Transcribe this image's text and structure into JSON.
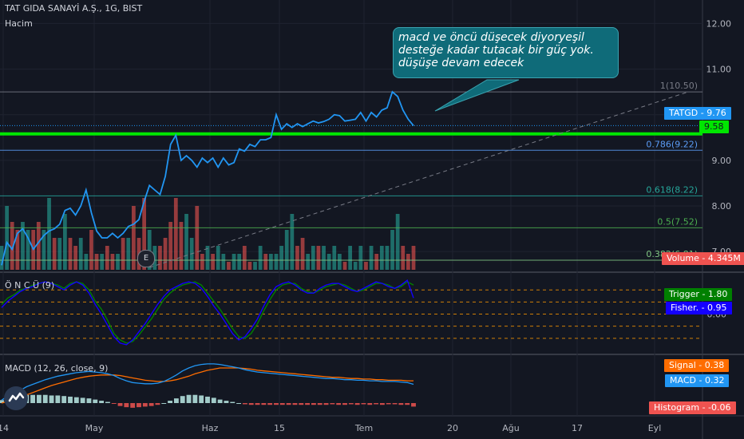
{
  "header": {
    "symbol_line": "TAT GIDA SANAYİ A.Ş., 1G, BIST",
    "volume_label": "Hacim",
    "oncu_label": "Ö N C Ü (9)",
    "macd_label": "MACD (12, 26, close, 9)"
  },
  "annotation": {
    "line1": "macd ve öncü düşecek diyoryeşil",
    "line2": "desteğe kadar tutacak bir güç yok.",
    "line3": " düşüşe devam edecek"
  },
  "event_badge": "E",
  "colors": {
    "background": "#131722",
    "price_line": "#2196f3",
    "support_green": "#00e600",
    "fib_blue": "#5b9cf6",
    "fib_teal": "#26a69a",
    "fib_green": "#4caf50",
    "volume_up": "#26a69a",
    "volume_down": "#ef5350",
    "trigger": "#008000",
    "fisher": "#1400ff",
    "signal": "#ff6d00",
    "macd": "#2196f3",
    "histogram": "#ef5350"
  },
  "chart_data": {
    "type": "line",
    "xticks": [
      "14",
      "May",
      "Haz",
      "15",
      "Tem",
      "20",
      "Ağu",
      "17",
      "Eyl"
    ],
    "price_axis": {
      "ticks": [
        "12.00",
        "11.00",
        "10.00",
        "9.00",
        "8.00",
        "7.00"
      ],
      "ylim": [
        6.6,
        12.2
      ]
    },
    "price_series": {
      "name": "TATGD",
      "values": [
        6.7,
        7.2,
        7.05,
        7.4,
        7.5,
        7.3,
        7.05,
        7.2,
        7.35,
        7.45,
        7.5,
        7.6,
        7.9,
        7.95,
        7.8,
        8.0,
        8.35,
        7.85,
        7.45,
        7.3,
        7.3,
        7.4,
        7.3,
        7.4,
        7.55,
        7.6,
        7.7,
        8.1,
        8.45,
        8.35,
        8.25,
        8.65,
        9.35,
        9.55,
        9.0,
        9.1,
        9.0,
        8.85,
        9.05,
        8.95,
        9.05,
        8.85,
        9.05,
        8.9,
        8.95,
        9.25,
        9.2,
        9.35,
        9.3,
        9.45,
        9.45,
        9.5,
        10.0,
        9.68,
        9.8,
        9.72,
        9.8,
        9.74,
        9.8,
        9.86,
        9.82,
        9.85,
        9.9,
        10.0,
        9.98,
        9.86,
        9.88,
        9.9,
        10.05,
        9.86,
        10.05,
        9.95,
        10.1,
        10.15,
        10.5,
        10.4,
        10.1,
        9.9,
        9.76
      ]
    },
    "volume": {
      "values": [
        3,
        8,
        6,
        5,
        6,
        5,
        5,
        6,
        5,
        9,
        4,
        4,
        7,
        4,
        3,
        4,
        2,
        5,
        2,
        2,
        3,
        2,
        2,
        4,
        4,
        8,
        4,
        9,
        5,
        3,
        3,
        4,
        6,
        9,
        6,
        7,
        4,
        8,
        2,
        3,
        2,
        3,
        2,
        1,
        2,
        2,
        3,
        1,
        1,
        3,
        2,
        2,
        2,
        3,
        5,
        7,
        3,
        4,
        2,
        3,
        3,
        3,
        2,
        3,
        2,
        1,
        3,
        1,
        3,
        1,
        3,
        2,
        3,
        3,
        5,
        7,
        3,
        2,
        3
      ],
      "up": [
        1,
        1,
        0,
        0,
        1,
        1,
        0,
        0,
        1,
        1,
        0,
        1,
        1,
        0,
        0,
        1,
        1,
        0,
        0,
        1,
        0,
        0,
        1,
        0,
        1,
        0,
        0,
        0,
        1,
        1,
        0,
        0,
        0,
        0,
        0,
        1,
        1,
        0,
        0,
        1,
        0,
        1,
        1,
        0,
        1,
        1,
        0,
        0,
        1,
        1,
        0,
        1,
        1,
        1,
        1,
        1,
        0,
        0,
        1,
        1,
        0,
        1,
        1,
        1,
        1,
        0,
        1,
        1,
        1,
        0,
        1,
        0,
        1,
        1,
        1,
        1,
        0,
        0,
        0
      ],
      "ylim": [
        0,
        12
      ]
    },
    "horizontal_levels": [
      {
        "label": "1(10.50)",
        "value": 10.5,
        "color": "#787b86"
      },
      {
        "label": "0.786(9.22)",
        "value": 9.22,
        "color": "#5b9cf6"
      },
      {
        "label": "0.618(8.22)",
        "value": 8.22,
        "color": "#26a69a"
      },
      {
        "label": "0.5(7.52)",
        "value": 7.52,
        "color": "#4caf50"
      },
      {
        "label": "0.382(6.81)",
        "value": 6.81,
        "color": "#81c784"
      }
    ],
    "support_level": 9.58,
    "trendline": {
      "from": [
        28,
        6.65
      ],
      "to": [
        130,
        10.5
      ]
    },
    "last_price_label": "TATGD",
    "last_price_value": "9.76",
    "support_value": "9.58",
    "volume_label": "Volume",
    "volume_value": "4.345M",
    "oncu": {
      "ticks": [
        "0.00"
      ],
      "ylim": [
        -2.3,
        2.4
      ],
      "trigger_label": "Trigger",
      "trigger_value": "1.80",
      "fisher_label": "Fisher.",
      "fisher_value": "0.95",
      "guide_levels": [
        1.5,
        0.75,
        0,
        -0.75,
        -1.5
      ],
      "trigger": [
        0.6,
        1.0,
        1.2,
        1.5,
        1.6,
        1.8,
        1.9,
        2.0,
        1.9,
        1.8,
        1.6,
        1.9,
        2.0,
        1.9,
        1.5,
        0.8,
        0.3,
        -0.4,
        -1.2,
        -1.6,
        -1.8,
        -1.7,
        -1.3,
        -0.8,
        -0.3,
        0.3,
        0.9,
        1.3,
        1.6,
        1.8,
        1.9,
        2.0,
        1.8,
        1.3,
        0.8,
        0.3,
        -0.3,
        -0.9,
        -1.4,
        -1.5,
        -1.2,
        -0.6,
        0.2,
        0.9,
        1.5,
        1.8,
        1.9,
        1.9,
        1.6,
        1.4,
        1.3,
        1.5,
        1.7,
        1.8,
        1.9,
        1.8,
        1.6,
        1.4,
        1.5,
        1.7,
        1.9,
        1.9,
        1.8,
        1.6,
        1.7,
        2.0,
        1.8
      ],
      "fisher": [
        0.4,
        0.8,
        1.1,
        1.4,
        1.6,
        1.7,
        1.9,
        2.0,
        1.9,
        1.7,
        1.5,
        1.8,
        2.0,
        1.8,
        1.3,
        0.6,
        0.0,
        -0.7,
        -1.4,
        -1.8,
        -1.9,
        -1.6,
        -1.1,
        -0.6,
        0.0,
        0.6,
        1.1,
        1.5,
        1.7,
        1.9,
        2.0,
        1.9,
        1.6,
        1.1,
        0.5,
        0.0,
        -0.6,
        -1.2,
        -1.6,
        -1.4,
        -0.9,
        -0.3,
        0.5,
        1.2,
        1.7,
        1.9,
        2.0,
        1.8,
        1.5,
        1.3,
        1.3,
        1.6,
        1.8,
        1.9,
        1.9,
        1.7,
        1.5,
        1.4,
        1.6,
        1.8,
        2.0,
        1.9,
        1.7,
        1.6,
        1.8,
        2.1,
        1.0
      ]
    },
    "macd": {
      "ylim": [
        -0.15,
        0.75
      ],
      "signal_label": "Signal",
      "signal_value": "0.38",
      "macd_label": "MACD",
      "macd_value": "0.32",
      "histogram_label": "Histogram",
      "histogram_value": "-0.06",
      "macd_line": [
        0.05,
        0.12,
        0.18,
        0.22,
        0.28,
        0.32,
        0.36,
        0.4,
        0.43,
        0.46,
        0.48,
        0.5,
        0.52,
        0.53,
        0.54,
        0.53,
        0.52,
        0.5,
        0.47,
        0.42,
        0.38,
        0.35,
        0.34,
        0.33,
        0.33,
        0.34,
        0.37,
        0.42,
        0.48,
        0.55,
        0.6,
        0.64,
        0.66,
        0.67,
        0.67,
        0.66,
        0.64,
        0.62,
        0.6,
        0.57,
        0.55,
        0.53,
        0.52,
        0.51,
        0.5,
        0.49,
        0.48,
        0.47,
        0.46,
        0.45,
        0.44,
        0.43,
        0.42,
        0.42,
        0.41,
        0.4,
        0.4,
        0.39,
        0.39,
        0.38,
        0.38,
        0.37,
        0.37,
        0.37,
        0.36,
        0.35,
        0.32
      ],
      "signal_line": [
        0.0,
        0.03,
        0.06,
        0.1,
        0.14,
        0.18,
        0.22,
        0.26,
        0.3,
        0.33,
        0.36,
        0.39,
        0.42,
        0.44,
        0.46,
        0.47,
        0.48,
        0.48,
        0.48,
        0.47,
        0.45,
        0.43,
        0.41,
        0.39,
        0.38,
        0.37,
        0.37,
        0.38,
        0.4,
        0.43,
        0.46,
        0.5,
        0.53,
        0.56,
        0.58,
        0.6,
        0.6,
        0.6,
        0.6,
        0.59,
        0.58,
        0.56,
        0.55,
        0.54,
        0.53,
        0.52,
        0.51,
        0.5,
        0.49,
        0.48,
        0.47,
        0.46,
        0.45,
        0.44,
        0.44,
        0.43,
        0.42,
        0.42,
        0.41,
        0.41,
        0.4,
        0.4,
        0.39,
        0.39,
        0.39,
        0.38,
        0.38
      ]
    }
  }
}
